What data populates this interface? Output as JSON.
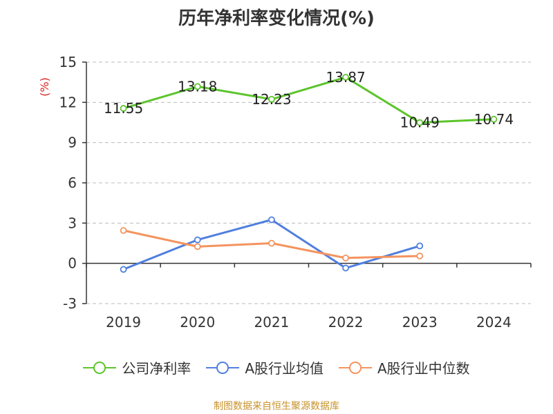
{
  "title": "历年净利率变化情况(%)",
  "source_note": "制图数据来自恒生聚源数据库",
  "chart_data": {
    "type": "line",
    "title": "历年净利率变化情况(%)",
    "ylabel": "(%)",
    "xlabel": "",
    "categories": [
      "2019",
      "2020",
      "2021",
      "2022",
      "2023",
      "2024"
    ],
    "ylim": [
      -3,
      15
    ],
    "yticks": [
      -3,
      0,
      3,
      6,
      9,
      12,
      15
    ],
    "grid": "horizontal-dashed",
    "legend_position": "bottom",
    "series": [
      {
        "name": "公司净利率",
        "color": "#5cc42b",
        "values": [
          11.55,
          13.18,
          12.23,
          13.87,
          10.49,
          10.74
        ],
        "show_labels": true
      },
      {
        "name": "A股行业均值",
        "color": "#4f7fde",
        "values": [
          -0.45,
          1.75,
          3.25,
          -0.35,
          1.3,
          null
        ],
        "show_labels": false
      },
      {
        "name": "A股行业中位数",
        "color": "#f4935e",
        "values": [
          2.45,
          1.25,
          1.5,
          0.4,
          0.55,
          null
        ],
        "show_labels": false
      }
    ]
  }
}
